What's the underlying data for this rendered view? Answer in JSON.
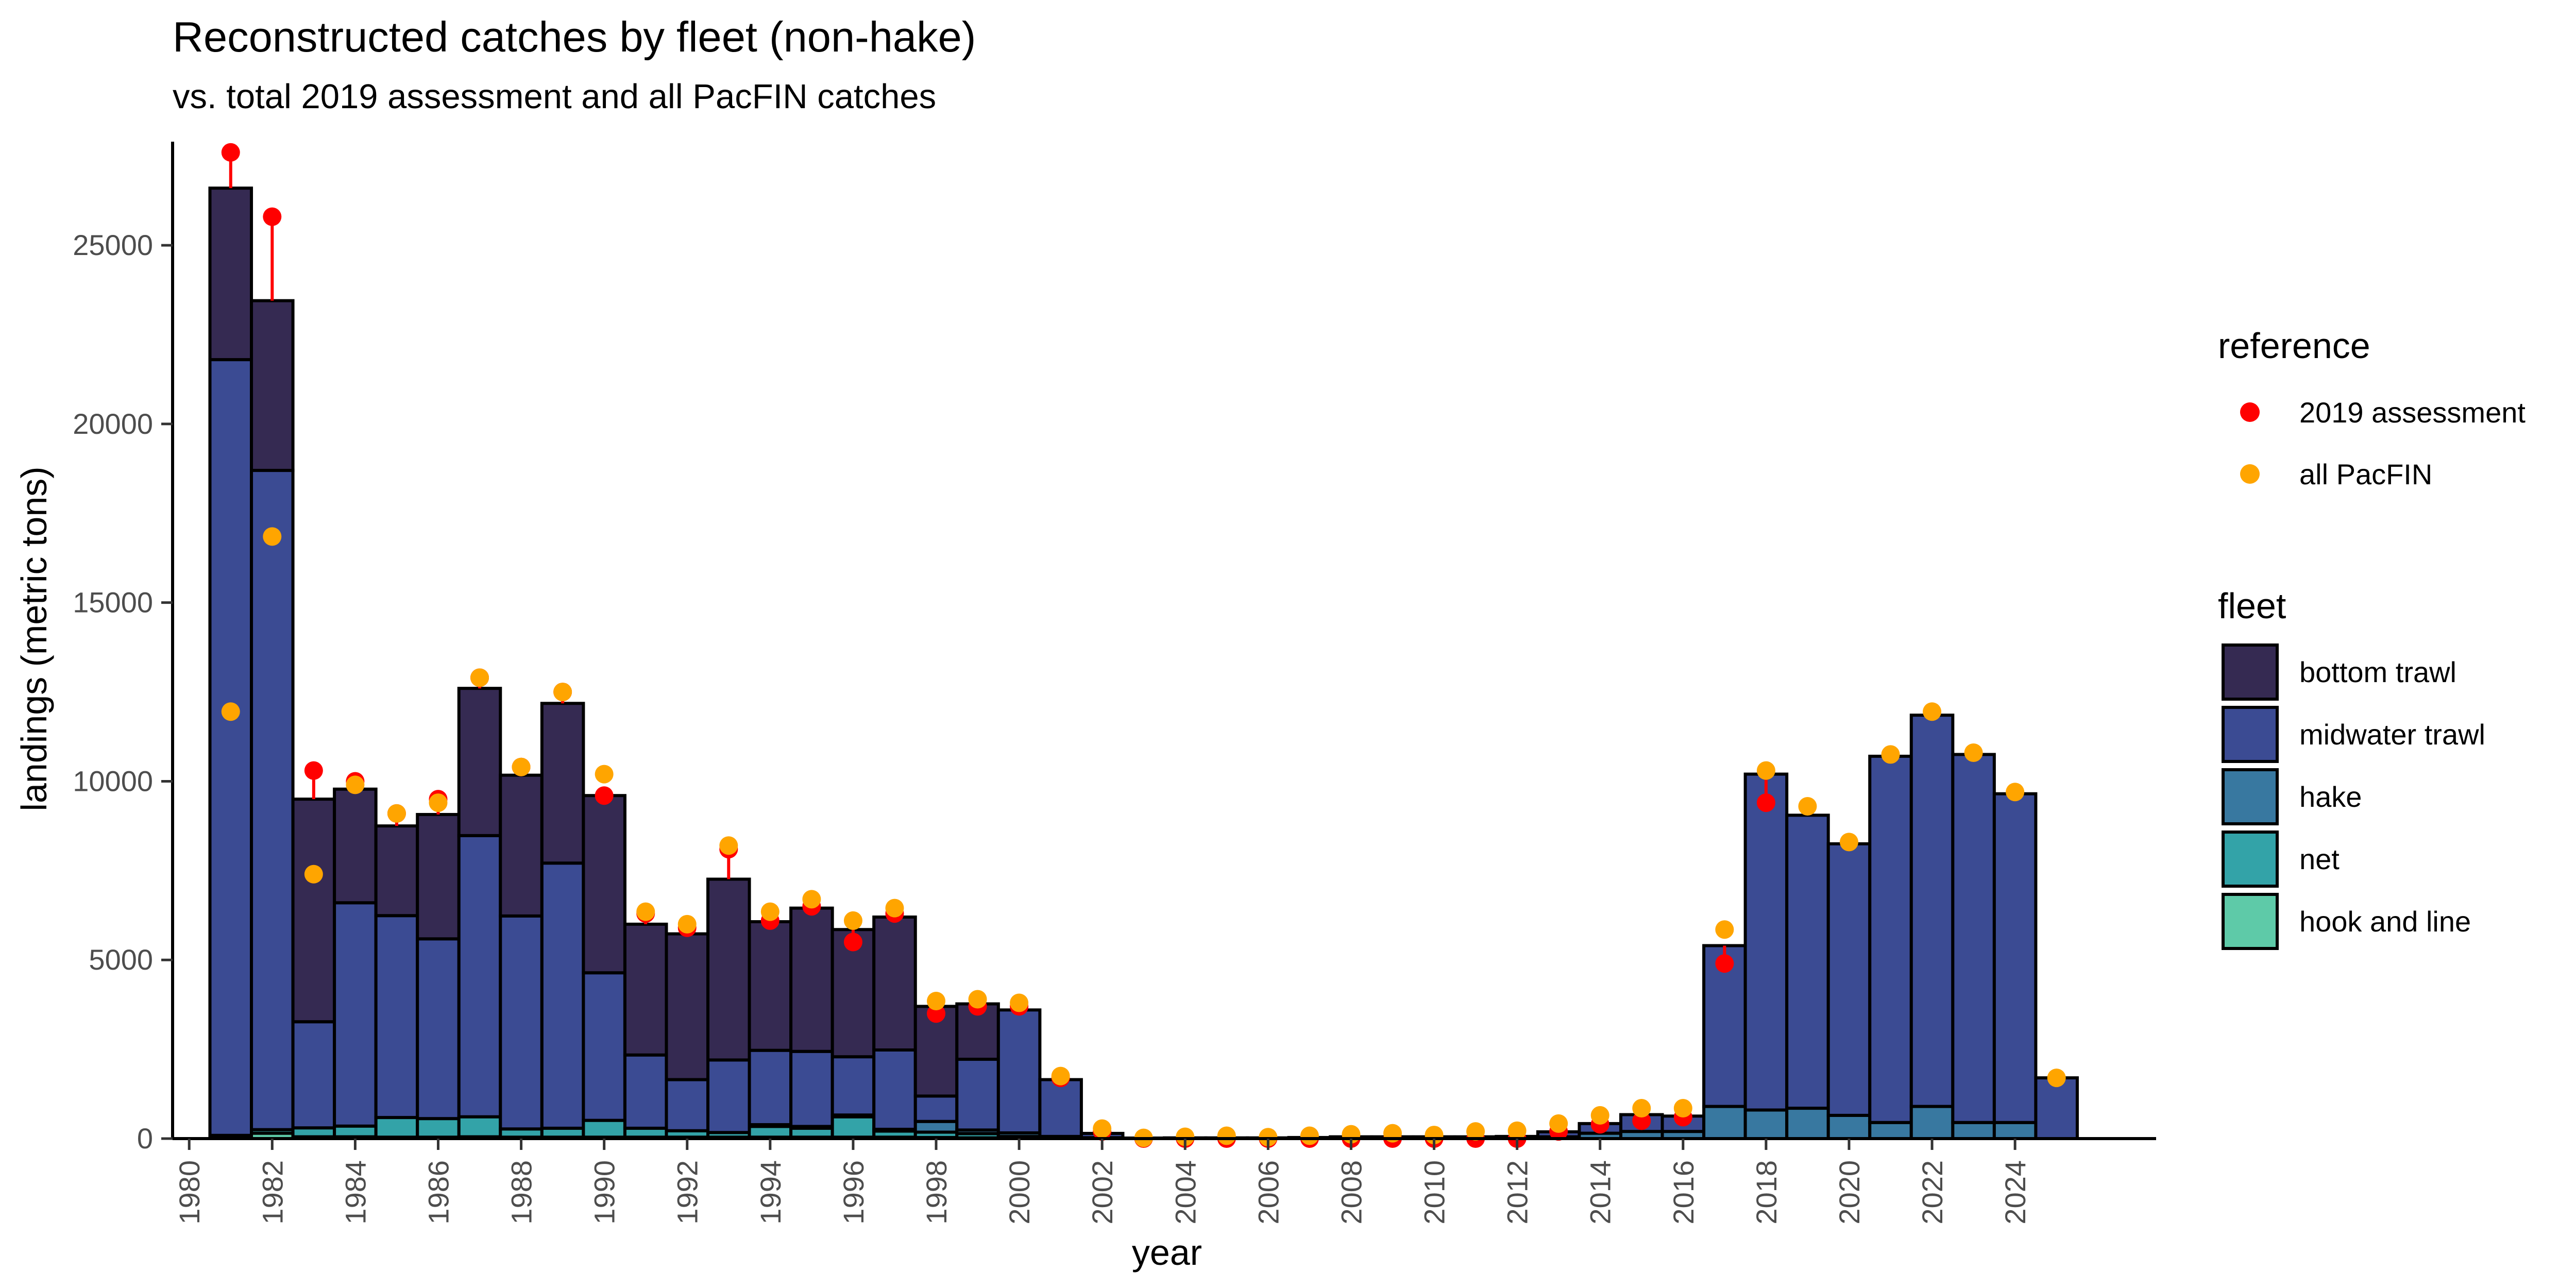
{
  "chart_data": {
    "type": "bar",
    "title": "Reconstructed catches by fleet (non-hake)",
    "subtitle": "vs. total 2019 assessment and all PacFIN catches",
    "xlabel": "year",
    "ylabel": "landings (metric tons)",
    "xlim": [
      1979.6,
      2027.4
    ],
    "ylim": [
      0,
      27900
    ],
    "x_ticks": [
      1980,
      1982,
      1984,
      1986,
      1988,
      1990,
      1992,
      1994,
      1996,
      1998,
      2000,
      2002,
      2004,
      2006,
      2008,
      2010,
      2012,
      2014,
      2016,
      2018,
      2020,
      2022,
      2024
    ],
    "y_ticks": [
      0,
      5000,
      10000,
      15000,
      20000,
      25000
    ],
    "grid": false,
    "legend_position": "right",
    "years": [
      1981,
      1982,
      1983,
      1984,
      1985,
      1986,
      1987,
      1988,
      1989,
      1990,
      1991,
      1992,
      1993,
      1994,
      1995,
      1996,
      1997,
      1998,
      1999,
      2000,
      2001,
      2002,
      2003,
      2004,
      2005,
      2006,
      2007,
      2008,
      2009,
      2010,
      2011,
      2012,
      2013,
      2014,
      2015,
      2016,
      2017,
      2018,
      2019,
      2020,
      2021,
      2022,
      2023,
      2024,
      2025
    ],
    "series": [
      {
        "name": "hook and line",
        "color": "#5ecaa8",
        "values": [
          40,
          150,
          50,
          50,
          40,
          40,
          50,
          40,
          40,
          40,
          40,
          40,
          40,
          40,
          40,
          40,
          40,
          30,
          20,
          10,
          10,
          5,
          0,
          0,
          0,
          0,
          0,
          0,
          0,
          0,
          0,
          0,
          0,
          0,
          0,
          0,
          0,
          0,
          0,
          0,
          0,
          0,
          0,
          0,
          0
        ]
      },
      {
        "name": "net",
        "color": "#33a3a8",
        "values": [
          50,
          100,
          250,
          300,
          550,
          520,
          560,
          230,
          250,
          470,
          250,
          180,
          130,
          300,
          250,
          570,
          170,
          150,
          120,
          50,
          0,
          0,
          0,
          0,
          0,
          0,
          0,
          0,
          0,
          0,
          0,
          0,
          0,
          0,
          0,
          0,
          0,
          0,
          0,
          0,
          0,
          0,
          0,
          0,
          0
        ]
      },
      {
        "name": "hake",
        "color": "#3878a0",
        "values": [
          0,
          0,
          0,
          0,
          0,
          0,
          0,
          0,
          0,
          0,
          0,
          0,
          0,
          50,
          50,
          50,
          50,
          300,
          100,
          100,
          50,
          20,
          10,
          10,
          10,
          10,
          10,
          10,
          10,
          10,
          10,
          10,
          50,
          150,
          200,
          200,
          900,
          800,
          850,
          650,
          450,
          900,
          450,
          450,
          0
        ]
      },
      {
        "name": "midwater trawl",
        "color": "#3b4b93",
        "values": [
          21710,
          18450,
          2970,
          6250,
          5650,
          5030,
          7870,
          5960,
          7420,
          4130,
          2050,
          1430,
          2030,
          2080,
          2100,
          1630,
          2220,
          710,
          1980,
          3440,
          1590,
          120,
          5,
          10,
          10,
          10,
          20,
          40,
          40,
          40,
          40,
          50,
          140,
          270,
          470,
          430,
          4500,
          9400,
          8200,
          7600,
          10250,
          10950,
          10300,
          9200,
          1700
        ]
      },
      {
        "name": "bottom trawl",
        "color": "#352a52",
        "values": [
          4800,
          4750,
          6230,
          3180,
          2510,
          3480,
          4120,
          3940,
          4470,
          4960,
          3660,
          4080,
          5060,
          3600,
          4010,
          3560,
          3720,
          2510,
          1550,
          0,
          0,
          0,
          0,
          0,
          0,
          0,
          0,
          0,
          0,
          0,
          0,
          0,
          0,
          0,
          0,
          0,
          0,
          0,
          0,
          0,
          0,
          0,
          0,
          0,
          0
        ]
      }
    ],
    "reference": [
      {
        "name": "2019 assessment",
        "color": "#ff0000",
        "values": [
          27600,
          25800,
          10300,
          10000,
          9100,
          9500,
          12900,
          10400,
          12500,
          9600,
          6300,
          5900,
          8100,
          6100,
          6500,
          5500,
          6300,
          3500,
          3700,
          3700,
          1700,
          200,
          0,
          0,
          0,
          0,
          0,
          0,
          0,
          0,
          0,
          0,
          200,
          400,
          500,
          600,
          4900,
          9400,
          null,
          null,
          null,
          null,
          null,
          null,
          null
        ]
      },
      {
        "name": "all PacFIN",
        "color": "#ffa500",
        "values": [
          11950,
          16850,
          7400,
          9900,
          9100,
          9400,
          12900,
          10400,
          12500,
          10200,
          6350,
          6000,
          8200,
          6350,
          6700,
          6100,
          6450,
          3850,
          3900,
          3800,
          1750,
          280,
          20,
          50,
          80,
          40,
          80,
          120,
          150,
          100,
          200,
          220,
          420,
          650,
          850,
          850,
          5850,
          10300,
          9300,
          8300,
          10750,
          11950,
          10800,
          9700,
          1700
        ]
      }
    ],
    "legends": {
      "reference_title": "reference",
      "fleet_title": "fleet",
      "fleet_order": [
        "bottom trawl",
        "midwater trawl",
        "hake",
        "net",
        "hook and line"
      ]
    }
  }
}
